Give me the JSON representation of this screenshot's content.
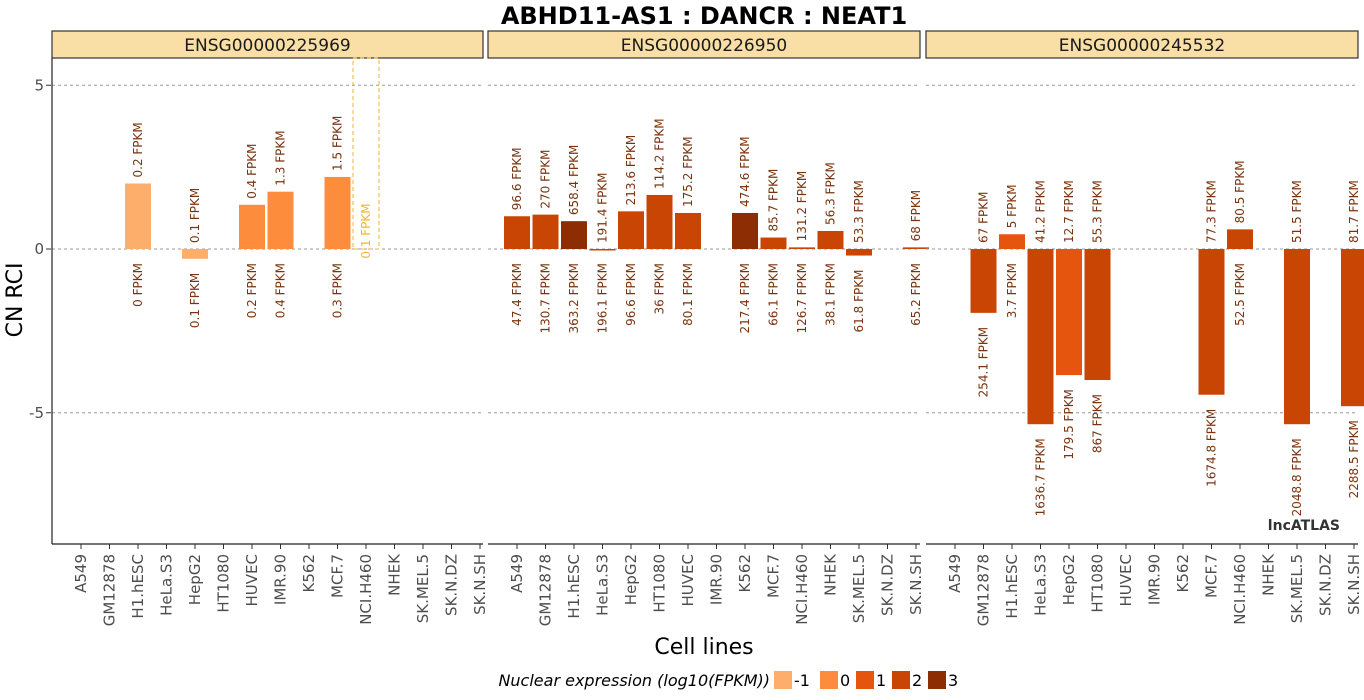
{
  "chart_data": {
    "type": "bar",
    "title": "ABHD11-AS1 : DANCR : NEAT1",
    "xlabel": "Cell lines",
    "ylabel": "CN RCI",
    "ylim": [
      -9,
      6
    ],
    "yticks": [
      5,
      0,
      -5
    ],
    "ytick_labels": [
      "5",
      "0",
      "-5"
    ],
    "grid": "dashed horizontal",
    "categories": [
      "A549",
      "GM12878",
      "H1.hESC",
      "HeLa.S3",
      "HepG2",
      "HT1080",
      "HUVEC",
      "IMR.90",
      "K562",
      "MCF.7",
      "NCI.H460",
      "NHEK",
      "SK.MEL.5",
      "SK.N.DZ",
      "SK.N.SH"
    ],
    "panels": [
      {
        "strip": "ENSG00000225969",
        "bars": [
          {
            "cat": "H1.hESC",
            "value": 2.0,
            "nuc": -0.7,
            "nuc_label": "0.2 FPKM",
            "cyt_label": "0 FPKM"
          },
          {
            "cat": "HepG2",
            "value": -0.3,
            "nuc": -1.0,
            "nuc_label": "0.1 FPKM",
            "cyt_label": "0.1 FPKM"
          },
          {
            "cat": "HUVEC",
            "value": 1.35,
            "nuc": -0.4,
            "nuc_label": "0.4 FPKM",
            "cyt_label": "0.2 FPKM"
          },
          {
            "cat": "IMR.90",
            "value": 1.75,
            "nuc": 0.11,
            "nuc_label": "1.3 FPKM",
            "cyt_label": "0.4 FPKM"
          },
          {
            "cat": "MCF.7",
            "value": 2.2,
            "nuc": 0.18,
            "nuc_label": "1.5 FPKM",
            "cyt_label": "0.3 FPKM"
          }
        ],
        "outlined": {
          "cat": "NCI.H460",
          "label": "0.1 FPKM"
        }
      },
      {
        "strip": "ENSG00000226950",
        "bars": [
          {
            "cat": "A549",
            "value": 1.0,
            "nuc": 1.98,
            "nuc_label": "96.6 FPKM",
            "cyt_label": "47.4 FPKM"
          },
          {
            "cat": "GM12878",
            "value": 1.05,
            "nuc": 2.43,
            "nuc_label": "270 FPKM",
            "cyt_label": "130.7 FPKM"
          },
          {
            "cat": "H1.hESC",
            "value": 0.85,
            "nuc": 2.82,
            "nuc_label": "658.4 FPKM",
            "cyt_label": "363.2 FPKM"
          },
          {
            "cat": "HeLa.S3",
            "value": 0.0,
            "nuc": 2.28,
            "nuc_label": "191.4 FPKM",
            "cyt_label": "196.1 FPKM"
          },
          {
            "cat": "HepG2",
            "value": 1.15,
            "nuc": 2.33,
            "nuc_label": "213.6 FPKM",
            "cyt_label": "96.6 FPKM"
          },
          {
            "cat": "HT1080",
            "value": 1.65,
            "nuc": 2.06,
            "nuc_label": "114.2 FPKM",
            "cyt_label": "36 FPKM"
          },
          {
            "cat": "HUVEC",
            "value": 1.1,
            "nuc": 2.24,
            "nuc_label": "175.2 FPKM",
            "cyt_label": "80.1 FPKM"
          },
          {
            "cat": "K562",
            "value": 1.1,
            "nuc": 2.68,
            "nuc_label": "474.6 FPKM",
            "cyt_label": "217.4 FPKM"
          },
          {
            "cat": "MCF.7",
            "value": 0.35,
            "nuc": 1.93,
            "nuc_label": "85.7 FPKM",
            "cyt_label": "66.1 FPKM"
          },
          {
            "cat": "NCI.H460",
            "value": 0.05,
            "nuc": 2.12,
            "nuc_label": "131.2 FPKM",
            "cyt_label": "126.7 FPKM"
          },
          {
            "cat": "NHEK",
            "value": 0.55,
            "nuc": 1.75,
            "nuc_label": "56.3 FPKM",
            "cyt_label": "38.1 FPKM"
          },
          {
            "cat": "SK.MEL.5",
            "value": -0.2,
            "nuc": 1.73,
            "nuc_label": "53.3 FPKM",
            "cyt_label": "61.8 FPKM"
          },
          {
            "cat": "SK.N.SH",
            "value": 0.05,
            "nuc": 1.83,
            "nuc_label": "68 FPKM",
            "cyt_label": "65.2 FPKM"
          }
        ]
      },
      {
        "strip": "ENSG00000245532",
        "bars": [
          {
            "cat": "GM12878",
            "value": -1.95,
            "nuc": 1.83,
            "nuc_label": "67 FPKM",
            "cyt_label": "254.1 FPKM"
          },
          {
            "cat": "H1.hESC",
            "value": 0.45,
            "nuc": 0.7,
            "nuc_label": "5 FPKM",
            "cyt_label": "3.7 FPKM"
          },
          {
            "cat": "HeLa.S3",
            "value": -5.35,
            "nuc": 1.61,
            "nuc_label": "41.2 FPKM",
            "cyt_label": "1636.7 FPKM"
          },
          {
            "cat": "HepG2",
            "value": -3.85,
            "nuc": 1.1,
            "nuc_label": "12.7 FPKM",
            "cyt_label": "179.5 FPKM"
          },
          {
            "cat": "HT1080",
            "value": -4.0,
            "nuc": 1.74,
            "nuc_label": "55.3 FPKM",
            "cyt_label": "867 FPKM"
          },
          {
            "cat": "MCF.7",
            "value": -4.45,
            "nuc": 1.89,
            "nuc_label": "77.3 FPKM",
            "cyt_label": "1674.8 FPKM"
          },
          {
            "cat": "NCI.H460",
            "value": 0.6,
            "nuc": 1.91,
            "nuc_label": "80.5 FPKM",
            "cyt_label": "52.5 FPKM"
          },
          {
            "cat": "SK.MEL.5",
            "value": -5.35,
            "nuc": 1.71,
            "nuc_label": "51.5 FPKM",
            "cyt_label": "2048.8 FPKM"
          },
          {
            "cat": "SK.N.SH",
            "value": -4.8,
            "nuc": 1.91,
            "nuc_label": "81.7 FPKM",
            "cyt_label": "2288.5 FPKM"
          }
        ]
      }
    ],
    "legend": {
      "title": "Nuclear expression (log10(FPKM))",
      "position": "bottom",
      "items": [
        {
          "label": "-1",
          "color": "#FDAE6B"
        },
        {
          "label": "0",
          "color": "#FD8D3C"
        },
        {
          "label": "1",
          "color": "#E6550D"
        },
        {
          "label": "2",
          "color": "#C84504"
        },
        {
          "label": "3",
          "color": "#8C2D04"
        }
      ]
    },
    "strip_color": "#F9DFA5",
    "outline_color": "#F2B632",
    "label_color": "#7A3510",
    "brand": "lncATLAS"
  }
}
